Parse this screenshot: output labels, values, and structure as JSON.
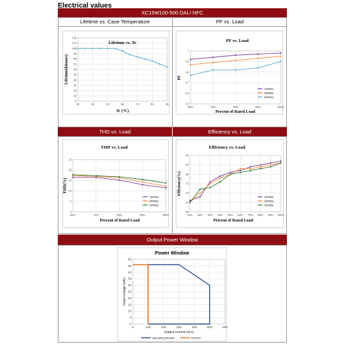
{
  "page_title": "Electrical values",
  "product_bar": "XC15W100-500 DALI NFC",
  "sections": {
    "lifetime_header": "Lifetime vs. Case Temperature",
    "pf_header": "PF vs. Load",
    "thd_header": "THD vs. Load",
    "eff_header": "Efficiency vs. Load",
    "power_header": "Output Power Window"
  },
  "colors": {
    "header_bar": "#8e0d12",
    "series_purple": "#7b3fa0",
    "series_orange": "#f08a3c",
    "series_blue": "#5aa7d8",
    "series_gray": "#8c8c8c",
    "series_green": "#2e7d32",
    "window_blue": "#2f5597",
    "dimmer_orange": "#e8731c"
  },
  "chart_data": [
    {
      "id": "lifetime",
      "type": "line",
      "title": "Lifetime vs. Tc",
      "xlabel": "Tc (°C)",
      "ylabel": "Lifetime(khours)",
      "xlim": [
        30,
        90
      ],
      "ylim": [
        0,
        120
      ],
      "xticks": [
        30,
        40,
        50,
        60,
        70,
        80,
        90
      ],
      "yticks": [
        0,
        10,
        20,
        30,
        40,
        50,
        60,
        70,
        80,
        90,
        100,
        110,
        120
      ],
      "grid": true,
      "series": [
        {
          "color": "#5aa7d8",
          "x": [
            30,
            35,
            40,
            45,
            50,
            55,
            60,
            65,
            70,
            75,
            80,
            85,
            90
          ],
          "y": [
            100,
            100,
            100,
            100,
            100,
            100,
            95,
            88,
            84,
            80,
            76,
            70,
            65
          ]
        }
      ]
    },
    {
      "id": "pf",
      "type": "line",
      "title": "PF vs. Load",
      "xlabel": "Percent of Rated Load",
      "ylabel": "PF",
      "categories": [
        "60%",
        "70%",
        "80%",
        "90%",
        "100%"
      ],
      "ylim": [
        0.5,
        1.0
      ],
      "ytick_count": 6,
      "grid": true,
      "legend_position": "bottom-right",
      "series": [
        {
          "name": "100Wac",
          "color": "#7b3fa0",
          "values": [
            0.92,
            0.94,
            0.96,
            0.97,
            0.98
          ]
        },
        {
          "name": "230Wac",
          "color": "#f08a3c",
          "values": [
            0.87,
            0.89,
            0.91,
            0.93,
            0.95
          ]
        },
        {
          "name": "264Wac",
          "color": "#5aa7d8",
          "values": [
            0.77,
            0.82,
            0.82,
            0.84,
            0.9
          ]
        }
      ]
    },
    {
      "id": "thd",
      "type": "line",
      "title": "THD vs. Load",
      "xlabel": "Percent of Rated Load",
      "ylabel": "THD(%)",
      "categories": [
        "60%",
        "70%",
        "80%",
        "90%",
        "100%"
      ],
      "ylim": [
        0,
        25
      ],
      "yticks": [
        0,
        5,
        10,
        15,
        20,
        25
      ],
      "grid": true,
      "legend_position": "bottom-right",
      "series": [
        {
          "name": "100Wac",
          "color": "#7b3fa0",
          "values": [
            16.5,
            16.5,
            15.2,
            13.0,
            11.5
          ]
        },
        {
          "name": "230Wac",
          "color": "#f08a3c",
          "values": [
            17.3,
            17.0,
            16.3,
            14.3,
            12.3
          ]
        },
        {
          "name": "264Wac",
          "color": "#2e7d32",
          "values": [
            17.8,
            17.3,
            16.8,
            15.5,
            13.8
          ]
        }
      ]
    },
    {
      "id": "efficiency",
      "type": "line",
      "title": "Efficiency vs. Load",
      "xlabel": "Percent of Rated Load",
      "ylabel": "Efficiency(%)",
      "categories": [
        "10%",
        "20%",
        "30%",
        "40%",
        "50%",
        "60%",
        "70%",
        "80%",
        "90%",
        "100%"
      ],
      "ylim": [
        60,
        90
      ],
      "yticks": [
        60,
        65,
        70,
        75,
        80,
        85,
        90
      ],
      "grid": true,
      "legend_position": "bottom-right",
      "series": [
        {
          "name": "100Wac",
          "color": "#7b3fa0",
          "values": [
            66,
            68,
            76,
            79,
            81,
            82,
            84,
            85,
            86,
            87
          ]
        },
        {
          "name": "230Wac",
          "color": "#f08a3c",
          "values": [
            65,
            70,
            75,
            78,
            80,
            83,
            83,
            84,
            85,
            86
          ]
        },
        {
          "name": "264Wac",
          "color": "#2e7d32",
          "values": [
            65,
            72,
            73,
            76,
            80,
            81,
            82,
            83,
            84,
            86
          ]
        }
      ]
    },
    {
      "id": "power_window",
      "type": "area",
      "title": "Power Window",
      "xlabel": "Output current (mA)",
      "ylabel": "Output voltage (Vdc)",
      "xlim": [
        0,
        600
      ],
      "ylim": [
        0,
        50
      ],
      "xticks": [
        0,
        100,
        200,
        300,
        400,
        500,
        600
      ],
      "yticks": [
        0,
        5,
        10,
        15,
        20,
        25,
        30,
        35,
        40,
        45,
        50
      ],
      "grid": true,
      "legend_position": "bottom",
      "series": [
        {
          "name": "Operating Window",
          "color": "#2f5597",
          "x": [
            100,
            100,
            300,
            500,
            500,
            100
          ],
          "y": [
            0,
            46,
            46,
            30,
            0,
            0
          ]
        },
        {
          "name": "Dimmer",
          "color": "#e8731c",
          "x": [
            0,
            100,
            100
          ],
          "y": [
            46,
            46,
            0
          ]
        }
      ]
    }
  ]
}
